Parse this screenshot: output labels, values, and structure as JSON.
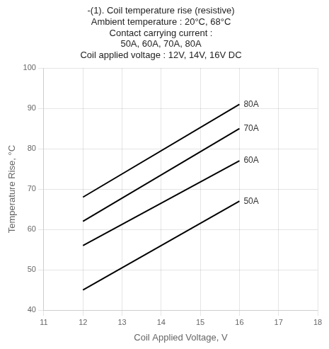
{
  "chart_data": {
    "type": "line",
    "title": [
      "-(1). Coil temperature rise (resistive)",
      "Ambient temperature : 20°C, 68°C",
      "Contact carrying current :",
      "50A, 60A, 70A, 80A",
      "Coil applied voltage : 12V, 14V, 16V DC"
    ],
    "x_label": "Coil Applied Voltage, V",
    "y_label": "Temperature Rise, °C",
    "x": [
      12,
      16
    ],
    "series": [
      {
        "name": "80A",
        "values": [
          68,
          91
        ]
      },
      {
        "name": "70A",
        "values": [
          62,
          85
        ]
      },
      {
        "name": "60A",
        "values": [
          56,
          77
        ]
      },
      {
        "name": "50A",
        "values": [
          45,
          67
        ]
      }
    ],
    "color": "#000000",
    "xlim": [
      11,
      18
    ],
    "xticks": [
      11,
      12,
      13,
      14,
      15,
      16,
      17,
      18
    ],
    "ylim": [
      40,
      100
    ],
    "yticks": [
      40,
      50,
      60,
      70,
      80,
      90,
      100
    ],
    "grid": true
  }
}
